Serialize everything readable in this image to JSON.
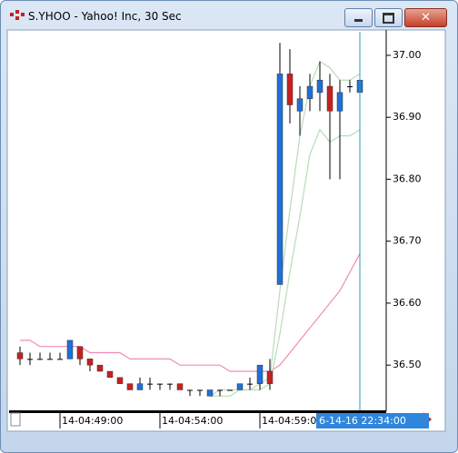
{
  "chart_data": {
    "type": "candlestick",
    "title": "S.YHOO - Yahoo! Inc, 30 Sec",
    "categories": [
      null,
      null,
      null,
      null,
      "14-04:49:00",
      null,
      null,
      null,
      null,
      null,
      null,
      null,
      null,
      null,
      "14-04:54:00",
      null,
      null,
      null,
      null,
      null,
      null,
      null,
      null,
      null,
      "14-04:59:00",
      null,
      null,
      null,
      null,
      null,
      null,
      null,
      null,
      null,
      null
    ],
    "open": [
      36.52,
      36.51,
      36.51,
      36.51,
      36.51,
      36.51,
      36.53,
      36.51,
      36.5,
      36.49,
      36.48,
      36.47,
      36.46,
      36.47,
      36.47,
      36.47,
      36.47,
      36.46,
      36.46,
      36.45,
      36.46,
      36.46,
      36.46,
      36.47,
      36.47,
      36.49,
      36.63,
      36.97,
      36.91,
      36.93,
      36.94,
      36.95,
      36.91,
      36.95,
      36.94
    ],
    "high": [
      36.53,
      36.52,
      36.52,
      36.52,
      36.52,
      36.54,
      36.53,
      36.51,
      36.5,
      36.49,
      36.48,
      36.47,
      36.48,
      36.48,
      36.47,
      36.47,
      36.47,
      36.46,
      36.46,
      36.46,
      36.46,
      36.46,
      36.47,
      36.48,
      36.5,
      36.51,
      37.02,
      37.01,
      36.95,
      36.97,
      36.99,
      36.97,
      36.96,
      36.96,
      36.97
    ],
    "low": [
      36.5,
      36.5,
      36.51,
      36.51,
      36.51,
      36.51,
      36.5,
      36.49,
      36.49,
      36.48,
      36.47,
      36.46,
      36.46,
      36.46,
      36.46,
      36.46,
      36.46,
      36.45,
      36.45,
      36.45,
      36.45,
      36.46,
      36.46,
      36.46,
      36.46,
      36.46,
      36.63,
      36.89,
      36.87,
      36.91,
      36.91,
      36.8,
      36.8,
      36.94,
      36.92
    ],
    "close": [
      36.51,
      36.51,
      36.51,
      36.51,
      36.51,
      36.54,
      36.51,
      36.5,
      36.49,
      36.48,
      36.47,
      36.46,
      36.47,
      36.47,
      36.47,
      36.47,
      36.46,
      36.46,
      36.46,
      36.46,
      36.46,
      36.46,
      36.47,
      36.47,
      36.5,
      36.47,
      36.97,
      36.92,
      36.93,
      36.95,
      36.96,
      36.91,
      36.94,
      36.95,
      36.96
    ],
    "up_color": "#1f6fd8",
    "down_color": "#c8201e",
    "lines": [
      {
        "color": "#f08cb8",
        "values": [
          36.54,
          36.54,
          36.53,
          36.53,
          36.53,
          36.53,
          36.53,
          36.52,
          36.52,
          36.52,
          36.52,
          36.51,
          36.51,
          36.51,
          36.51,
          36.51,
          36.5,
          36.5,
          36.5,
          36.5,
          36.5,
          36.49,
          36.49,
          36.49,
          36.49,
          36.49,
          36.5,
          36.52,
          36.54,
          36.56,
          36.58,
          36.6,
          36.62,
          36.65,
          36.68
        ]
      },
      {
        "color": "#b8dcb8",
        "values": [
          null,
          null,
          null,
          null,
          null,
          null,
          null,
          null,
          null,
          null,
          null,
          null,
          null,
          null,
          null,
          null,
          null,
          null,
          null,
          36.45,
          36.46,
          36.46,
          36.46,
          36.46,
          36.47,
          36.48,
          36.62,
          36.75,
          36.87,
          36.95,
          36.99,
          36.98,
          36.96,
          36.96,
          36.97
        ]
      },
      {
        "color": "#b8dcb8",
        "values": [
          null,
          null,
          null,
          null,
          null,
          null,
          null,
          null,
          null,
          null,
          null,
          null,
          null,
          null,
          null,
          null,
          null,
          null,
          null,
          36.45,
          36.45,
          36.45,
          36.46,
          36.46,
          36.46,
          36.47,
          36.55,
          36.65,
          36.74,
          36.84,
          36.88,
          36.86,
          36.87,
          36.87,
          36.88
        ]
      }
    ],
    "ylim": [
      36.427,
      37.038
    ],
    "yticks": [
      {
        "value": 36.5,
        "label": "36.50"
      },
      {
        "value": 36.6,
        "label": "36.60"
      },
      {
        "value": 36.7,
        "label": "36.70"
      },
      {
        "value": 36.8,
        "label": "36.80"
      },
      {
        "value": 36.9,
        "label": "36.90"
      },
      {
        "value": 37,
        "label": "37.00"
      }
    ],
    "cursor_label": "6-14-16 22:34:00"
  }
}
